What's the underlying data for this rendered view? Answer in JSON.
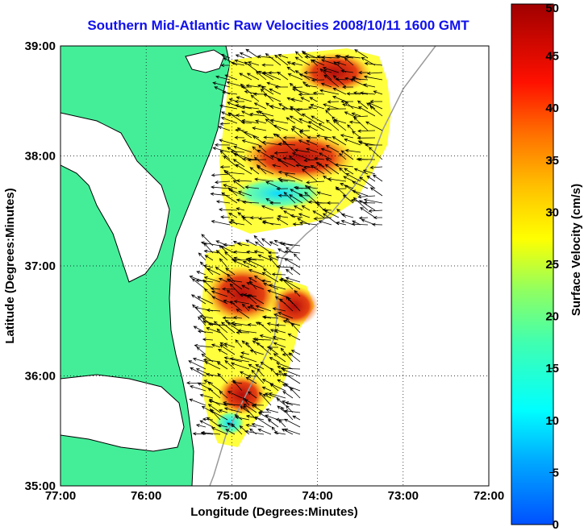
{
  "title": "Southern Mid-Atlantic Raw Velocities 2008/10/11 1600 GMT",
  "map": {
    "xlabel": "Longitude (Degrees:Minutes)",
    "ylabel": "Latitude (Degrees:Minutes)",
    "x_ticks": [
      "77:00",
      "76:00",
      "75:00",
      "74:00",
      "73:00",
      "72:00"
    ],
    "y_ticks": [
      "39:00",
      "38:00",
      "37:00",
      "36:00",
      "35:00"
    ],
    "lon_range": [
      -77,
      -72
    ],
    "lat_range": [
      35,
      39
    ],
    "land_color": "#44ee99",
    "grid": "dotted"
  },
  "colorbar": {
    "label": "Surface Velocity (cm/s)",
    "ticks": [
      "0",
      "5",
      "10",
      "15",
      "20",
      "25",
      "30",
      "35",
      "40",
      "45",
      "50"
    ],
    "range": [
      0,
      50
    ],
    "colormap": "jet"
  }
}
